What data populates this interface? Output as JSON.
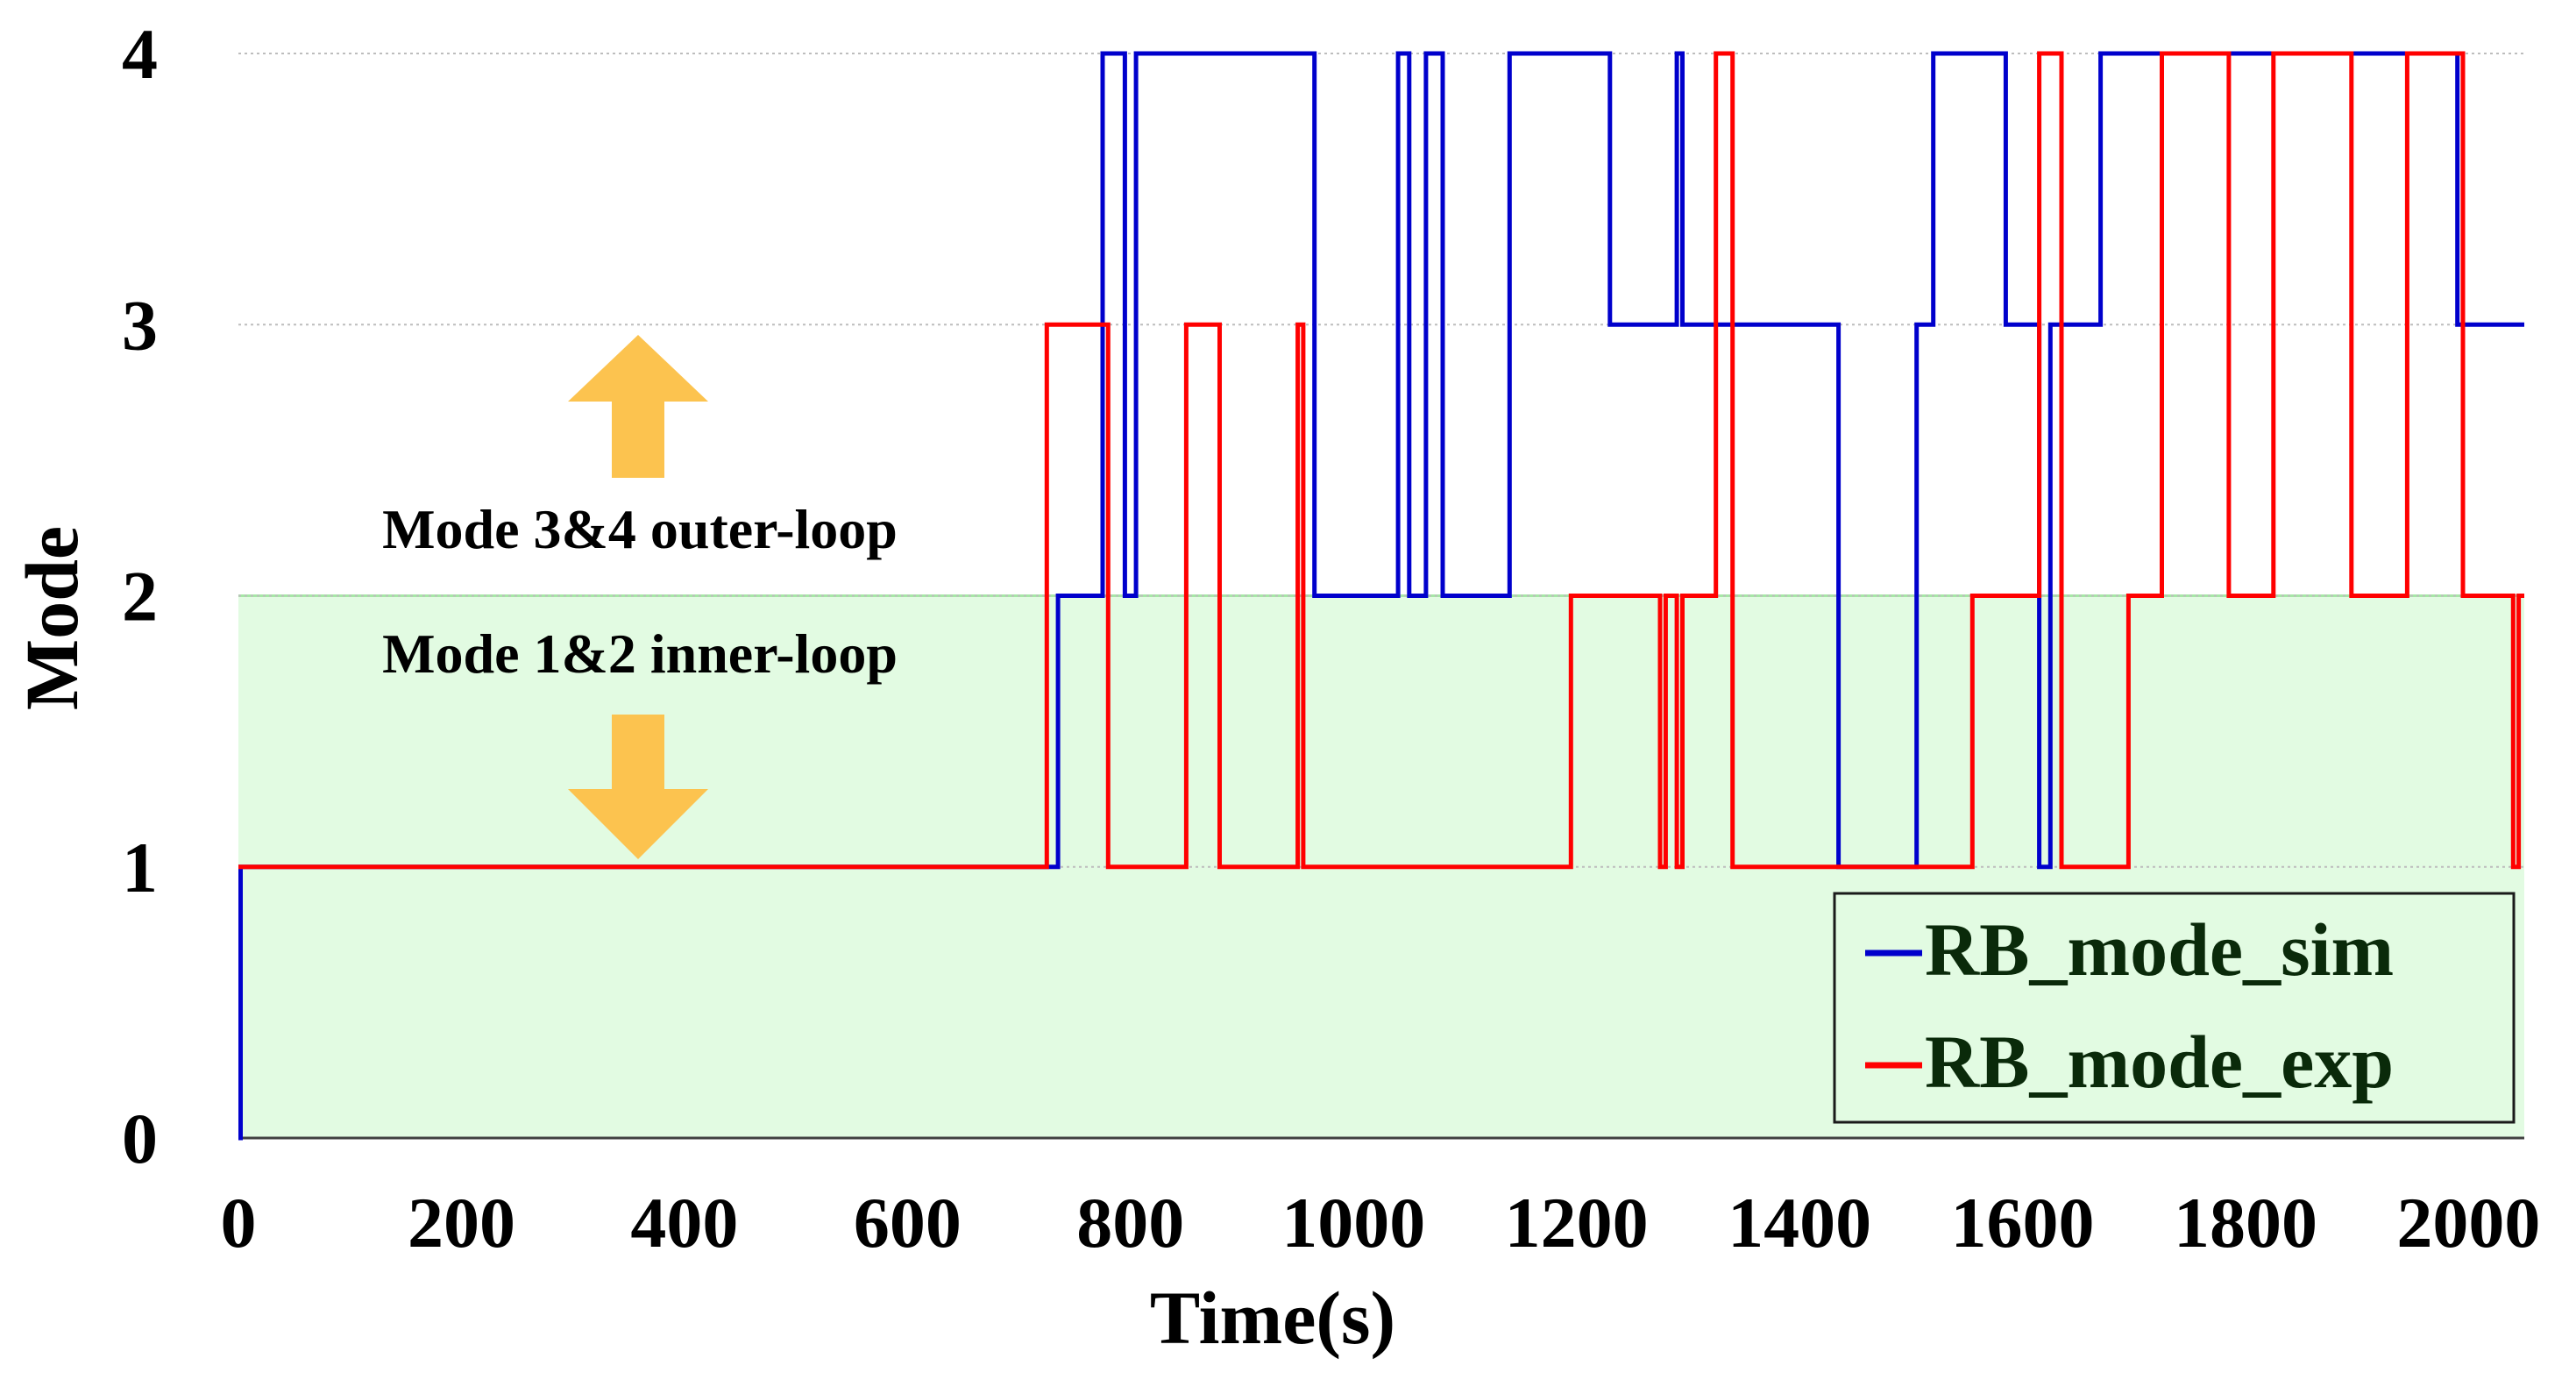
{
  "chart_data": {
    "type": "line",
    "title": "",
    "xlabel": "Time(s)",
    "ylabel": "Mode",
    "xlim": [
      0,
      2050
    ],
    "ylim": [
      0,
      4
    ],
    "x_ticks": [
      0,
      200,
      400,
      600,
      800,
      1000,
      1200,
      1400,
      1600,
      1800,
      2000
    ],
    "y_ticks": [
      0,
      1,
      2,
      3,
      4
    ],
    "x_tick_labels": [
      "0",
      "200",
      "400",
      "600",
      "800",
      "1000",
      "1200",
      "1400",
      "1600",
      "1800",
      "2000"
    ],
    "y_tick_labels": [
      "0",
      "1",
      "2",
      "3",
      "4"
    ],
    "grid": "horizontal dotted",
    "shaded_region": {
      "y_from": 0,
      "y_to": 2,
      "color": "#e2fbe2",
      "edge_color": "#a6e7a6"
    },
    "annotations": {
      "outer_loop": "Mode 3&4 outer-loop",
      "inner_loop": "Mode 1&2 inner-loop"
    },
    "arrow_color": "#fcc34f",
    "legend": {
      "placement": "bottom-right",
      "bg": "#e2fbe2",
      "entries": [
        "RB_mode_sim",
        "RB_mode_exp"
      ]
    },
    "series": [
      {
        "name": "RB_mode_sim",
        "color": "#0000cc",
        "steps": [
          [
            0,
            0
          ],
          [
            2,
            1
          ],
          [
            735,
            2
          ],
          [
            775,
            4
          ],
          [
            795,
            2
          ],
          [
            805,
            4
          ],
          [
            965,
            2
          ],
          [
            1040,
            4
          ],
          [
            1050,
            2
          ],
          [
            1065,
            4
          ],
          [
            1080,
            2
          ],
          [
            1140,
            4
          ],
          [
            1230,
            3
          ],
          [
            1290,
            4
          ],
          [
            1295,
            3
          ],
          [
            1435,
            1
          ],
          [
            1505,
            3
          ],
          [
            1520,
            4
          ],
          [
            1585,
            3
          ],
          [
            1615,
            1
          ],
          [
            1625,
            3
          ],
          [
            1670,
            4
          ],
          [
            1990,
            3
          ],
          [
            2050,
            3
          ]
        ]
      },
      {
        "name": "RB_mode_exp",
        "color": "#ff0000",
        "steps": [
          [
            0,
            1
          ],
          [
            725,
            3
          ],
          [
            780,
            1
          ],
          [
            850,
            3
          ],
          [
            880,
            1
          ],
          [
            950,
            3
          ],
          [
            955,
            1
          ],
          [
            1195,
            2
          ],
          [
            1275,
            1
          ],
          [
            1280,
            2
          ],
          [
            1290,
            1
          ],
          [
            1295,
            2
          ],
          [
            1325,
            4
          ],
          [
            1340,
            1
          ],
          [
            1555,
            2
          ],
          [
            1615,
            4
          ],
          [
            1635,
            1
          ],
          [
            1695,
            2
          ],
          [
            1725,
            4
          ],
          [
            1785,
            2
          ],
          [
            1825,
            4
          ],
          [
            1895,
            2
          ],
          [
            1945,
            4
          ],
          [
            1995,
            2
          ],
          [
            2040,
            1
          ],
          [
            2045,
            2
          ],
          [
            2050,
            2
          ]
        ]
      }
    ]
  }
}
